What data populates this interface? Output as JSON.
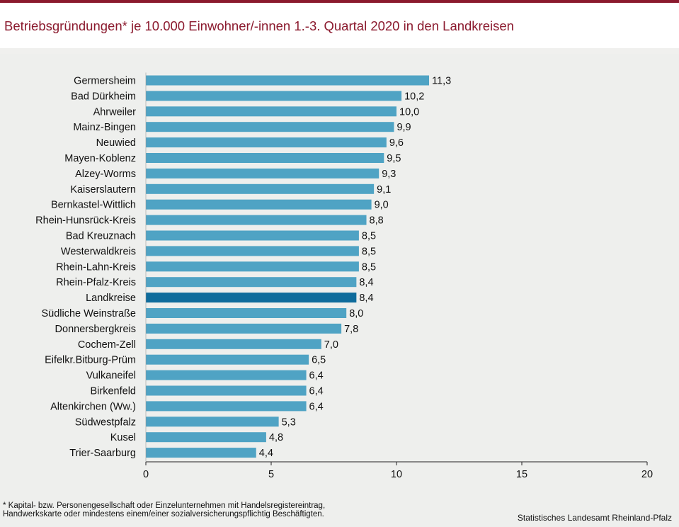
{
  "colors": {
    "title": "#8b1a2e",
    "bar": "#4fa3c4",
    "bar_highlight": "#0f6c9c",
    "background": "#eeefed"
  },
  "chart_data": {
    "type": "bar",
    "orientation": "horizontal",
    "title": "Betriebsgründungen* je 10.000 Einwohner/-innen 1.-3. Quartal 2020  in den Landkreisen",
    "categories": [
      "Germersheim",
      "Bad Dürkheim",
      "Ahrweiler",
      "Mainz-Bingen",
      "Neuwied",
      "Mayen-Koblenz",
      "Alzey-Worms",
      "Kaiserslautern",
      "Bernkastel-Wittlich",
      "Rhein-Hunsrück-Kreis",
      "Bad Kreuznach",
      "Westerwaldkreis",
      "Rhein-Lahn-Kreis",
      "Rhein-Pfalz-Kreis",
      "Landkreise",
      "Südliche Weinstraße",
      "Donnersbergkreis",
      "Cochem-Zell",
      "Eifelkr.Bitburg-Prüm",
      "Vulkaneifel",
      "Birkenfeld",
      "Altenkirchen (Ww.)",
      "Südwestpfalz",
      "Kusel",
      "Trier-Saarburg"
    ],
    "values": [
      11.3,
      10.2,
      10.0,
      9.9,
      9.6,
      9.5,
      9.3,
      9.1,
      9.0,
      8.8,
      8.5,
      8.5,
      8.5,
      8.4,
      8.4,
      8.0,
      7.8,
      7.0,
      6.5,
      6.4,
      6.4,
      6.4,
      5.3,
      4.8,
      4.4
    ],
    "value_labels": [
      "11,3",
      "10,2",
      "10,0",
      "9,9",
      "9,6",
      "9,5",
      "9,3",
      "9,1",
      "9,0",
      "8,8",
      "8,5",
      "8,5",
      "8,5",
      "8,4",
      "8,4",
      "8,0",
      "7,8",
      "7,0",
      "6,5",
      "6,4",
      "6,4",
      "6,4",
      "5,3",
      "4,8",
      "4,4"
    ],
    "highlight": "Landkreise",
    "xlim": [
      0,
      20
    ],
    "xticks": [
      0,
      5,
      10,
      15,
      20
    ],
    "xlabel": "",
    "ylabel": "",
    "grid": false
  },
  "footnote": {
    "line1": "* Kapital- bzw. Personengesellschaft  oder Einzelunternehmen  mit  Handelsregistereintrag,",
    "line2": "Handwerkskarte  oder  mindestens  einem/einer  sozialversicherungspflichtig  Beschäftigten."
  },
  "source": "Statistisches Landesamt Rheinland-Pfalz"
}
